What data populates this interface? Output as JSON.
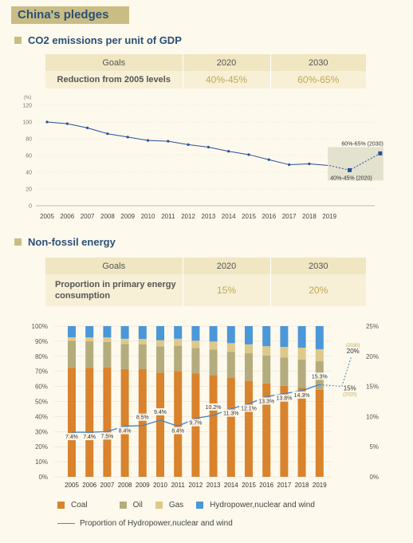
{
  "page_title": "China's pledges",
  "section1": {
    "title": "CO2 emissions per unit of GDP",
    "table": {
      "headers": [
        "Goals",
        "2020",
        "2030"
      ],
      "row_label": "Reduction from 2005 levels",
      "values": [
        "40%-45%",
        "60%-65%"
      ]
    }
  },
  "section2": {
    "title": "Non-fossil energy",
    "table": {
      "headers": [
        "Goals",
        "2020",
        "2030"
      ],
      "row_label": "Proportion in primary energy consumption",
      "values": [
        "15%",
        "20%"
      ]
    }
  },
  "colors": {
    "coal": "#d9832d",
    "oil": "#b4ac7c",
    "gas": "#ddc98a",
    "hydro": "#4b97d8",
    "line": "#4a86c8",
    "co2_line": "#2b4f9a",
    "accent": "#c2a653"
  },
  "chart_data": [
    {
      "type": "line",
      "ylabel": "(%)",
      "x": [
        "2005",
        "2006",
        "2007",
        "2008",
        "2009",
        "2010",
        "2011",
        "2012",
        "2013",
        "2014",
        "2015",
        "2016",
        "2017",
        "2018",
        "2019"
      ],
      "series": [
        {
          "values": [
            100,
            98,
            93,
            86,
            82,
            78,
            77,
            73,
            70,
            65,
            61,
            55,
            49,
            50,
            48
          ]
        }
      ],
      "targets": [
        {
          "label": "40%-45% (2020)",
          "value": 42.5
        },
        {
          "label": "60%-65% (2030)",
          "value": 62.5
        }
      ],
      "yticks": [
        0,
        20,
        40,
        60,
        80,
        100,
        120
      ],
      "ylim": [
        0,
        120
      ]
    },
    {
      "type": "bar",
      "categories": [
        "2005",
        "2006",
        "2007",
        "2008",
        "2009",
        "2010",
        "2011",
        "2012",
        "2013",
        "2014",
        "2015",
        "2016",
        "2017",
        "2018",
        "2019"
      ],
      "series": [
        {
          "name": "Coal",
          "values": [
            72.4,
            72.4,
            72.5,
            71.5,
            71.6,
            69.2,
            70.2,
            68.5,
            67.4,
            65.6,
            63.7,
            62.0,
            60.4,
            59.0,
            57.7
          ]
        },
        {
          "name": "Oil",
          "values": [
            17.8,
            17.5,
            17.0,
            16.7,
            16.4,
            17.4,
            16.8,
            17.0,
            17.1,
            17.4,
            18.3,
            18.5,
            18.8,
            18.9,
            19.0
          ]
        },
        {
          "name": "Gas",
          "values": [
            2.4,
            2.7,
            3.0,
            3.4,
            3.5,
            4.0,
            4.6,
            4.8,
            5.3,
            5.7,
            5.9,
            6.2,
            7.0,
            7.8,
            8.0
          ]
        },
        {
          "name": "Hydropower,nuclear and wind",
          "values": [
            7.4,
            7.4,
            7.5,
            8.4,
            8.5,
            9.4,
            8.4,
            9.7,
            10.2,
            11.3,
            12.1,
            13.3,
            13.8,
            14.3,
            15.3
          ]
        }
      ],
      "line_series": {
        "name": "Proportion of Hydropower,nuclear and wind",
        "values": [
          7.4,
          7.4,
          7.5,
          8.4,
          8.5,
          9.4,
          8.4,
          9.7,
          10.2,
          11.3,
          12.1,
          13.3,
          13.8,
          14.3,
          15.3
        ],
        "labels": [
          "7.4%",
          "7.4%",
          "7.5%",
          "8.4%",
          "8.5%",
          "9.4%",
          "8.4%",
          "9.7%",
          "10.2%",
          "11.3%",
          "12.1%",
          "13.3%",
          "13.8%",
          "14.3%",
          "15.3%"
        ]
      },
      "targets": [
        {
          "top": "(2030)",
          "label": "20%",
          "value": 20
        },
        {
          "label": "15%",
          "bottom": "(2020)",
          "value": 15
        }
      ],
      "yticks_left": [
        "0%",
        "10%",
        "20%",
        "30%",
        "40%",
        "50%",
        "60%",
        "70%",
        "80%",
        "90%",
        "100%"
      ],
      "yticks_right": [
        "0%",
        "5%",
        "10%",
        "15%",
        "20%",
        "25%"
      ],
      "ylim_left": [
        0,
        100
      ],
      "ylim_right": [
        0,
        25
      ]
    }
  ]
}
